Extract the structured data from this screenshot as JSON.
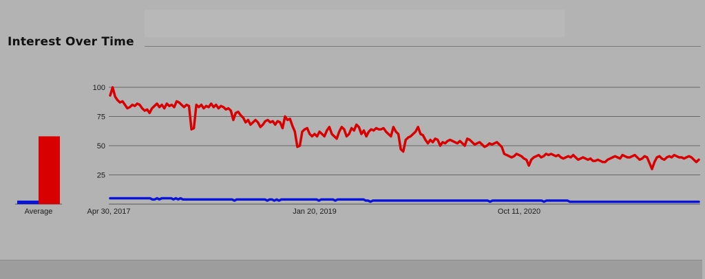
{
  "page": {
    "title": "Interest Over Time",
    "average_label": "Average"
  },
  "colors": {
    "series_red": "#d80000",
    "series_blue": "#0a14d6",
    "grid": "#666666",
    "background": "#b3b3b3"
  },
  "chart_data": {
    "type": "line",
    "title": "Interest Over Time",
    "ylim": [
      0,
      100
    ],
    "y_ticks": [
      25,
      50,
      75,
      100
    ],
    "x_ticks": [
      "Apr 30, 2017",
      "Jan 20, 2019",
      "Oct 11, 2020"
    ],
    "grid": true,
    "legend": "none",
    "averages": [
      {
        "color": "#0a14d6",
        "value": 3
      },
      {
        "color": "#d80000",
        "value": 58
      }
    ],
    "series": [
      {
        "color": "#d80000",
        "values": [
          93,
          100,
          92,
          89,
          87,
          88,
          85,
          82,
          83,
          85,
          84,
          86,
          85,
          82,
          80,
          81,
          78,
          82,
          84,
          86,
          83,
          85,
          82,
          86,
          84,
          85,
          83,
          88,
          87,
          85,
          83,
          85,
          84,
          64,
          65,
          85,
          83,
          85,
          82,
          84,
          83,
          86,
          83,
          85,
          82,
          84,
          83,
          81,
          82,
          80,
          72,
          78,
          79,
          76,
          74,
          70,
          72,
          68,
          70,
          72,
          70,
          66,
          68,
          71,
          72,
          70,
          71,
          68,
          71,
          70,
          65,
          75,
          72,
          73,
          67,
          62,
          49,
          50,
          62,
          64,
          65,
          60,
          58,
          60,
          58,
          62,
          60,
          58,
          63,
          66,
          60,
          58,
          56,
          62,
          66,
          64,
          58,
          60,
          65,
          63,
          68,
          66,
          60,
          63,
          58,
          62,
          64,
          63,
          65,
          64,
          64,
          65,
          62,
          60,
          58,
          66,
          62,
          60,
          47,
          45,
          55,
          57,
          58,
          60,
          62,
          66,
          60,
          59,
          55,
          52,
          55,
          53,
          56,
          55,
          50,
          53,
          52,
          54,
          55,
          54,
          53,
          52,
          54,
          52,
          50,
          56,
          55,
          53,
          51,
          52,
          53,
          51,
          49,
          50,
          52,
          51,
          52,
          53,
          51,
          49,
          43,
          42,
          41,
          40,
          41,
          43,
          42,
          41,
          39,
          38,
          33,
          38,
          40,
          41,
          42,
          40,
          41,
          43,
          42,
          43,
          42,
          41,
          42,
          40,
          39,
          40,
          41,
          40,
          42,
          40,
          38,
          39,
          40,
          39,
          38,
          39,
          37,
          37,
          38,
          37,
          36,
          36,
          38,
          39,
          40,
          41,
          40,
          39,
          42,
          41,
          40,
          40,
          41,
          42,
          40,
          38,
          39,
          41,
          40,
          35,
          30,
          36,
          40,
          41,
          39,
          38,
          40,
          41,
          40,
          42,
          41,
          40,
          40,
          39,
          40,
          41,
          40,
          38,
          36,
          38
        ]
      },
      {
        "color": "#0a14d6",
        "values": [
          5,
          5,
          5,
          5,
          5,
          5,
          5,
          5,
          5,
          5,
          5,
          5,
          5,
          5,
          5,
          5,
          5,
          5,
          4,
          4,
          5,
          4,
          5,
          5,
          5,
          5,
          5,
          4,
          5,
          4,
          5,
          4,
          4,
          4,
          4,
          4,
          4,
          4,
          4,
          4,
          4,
          4,
          4,
          4,
          4,
          4,
          4,
          4,
          4,
          4,
          4,
          4,
          4,
          3,
          4,
          4,
          4,
          4,
          4,
          4,
          4,
          4,
          4,
          4,
          4,
          4,
          4,
          3,
          4,
          4,
          3,
          4,
          3,
          4,
          4,
          4,
          4,
          4,
          4,
          4,
          4,
          4,
          4,
          4,
          4,
          4,
          4,
          4,
          4,
          3,
          4,
          4,
          4,
          4,
          4,
          4,
          3,
          4,
          4,
          4,
          4,
          4,
          4,
          4,
          4,
          4,
          4,
          4,
          4,
          3,
          3,
          2,
          3,
          3,
          3,
          3,
          3,
          3,
          3,
          3,
          3,
          3,
          3,
          3,
          3,
          3,
          3,
          3,
          3,
          3,
          3,
          3,
          3,
          3,
          3,
          3,
          3,
          3,
          3,
          3,
          3,
          3,
          3,
          3,
          3,
          3,
          3,
          3,
          3,
          3,
          3,
          3,
          3,
          3,
          3,
          3,
          3,
          3,
          3,
          3,
          3,
          3,
          2,
          3,
          3,
          3,
          3,
          3,
          3,
          3,
          3,
          3,
          3,
          3,
          3,
          3,
          3,
          3,
          3,
          3,
          3,
          3,
          3,
          3,
          3,
          2,
          3,
          3,
          3,
          3,
          3,
          3,
          3,
          3,
          3,
          3,
          2,
          2,
          2,
          2,
          2,
          2,
          2,
          2,
          2,
          2,
          2,
          2,
          2,
          2,
          2,
          2,
          2,
          2,
          2,
          2,
          2,
          2,
          2,
          2,
          2,
          2,
          2,
          2,
          2,
          2,
          2,
          2,
          2,
          2,
          2,
          2,
          2,
          2,
          2,
          2,
          2,
          2,
          2,
          2,
          2,
          2,
          2,
          2,
          2,
          2,
          2,
          2,
          2,
          2,
          2,
          2
        ]
      }
    ]
  }
}
